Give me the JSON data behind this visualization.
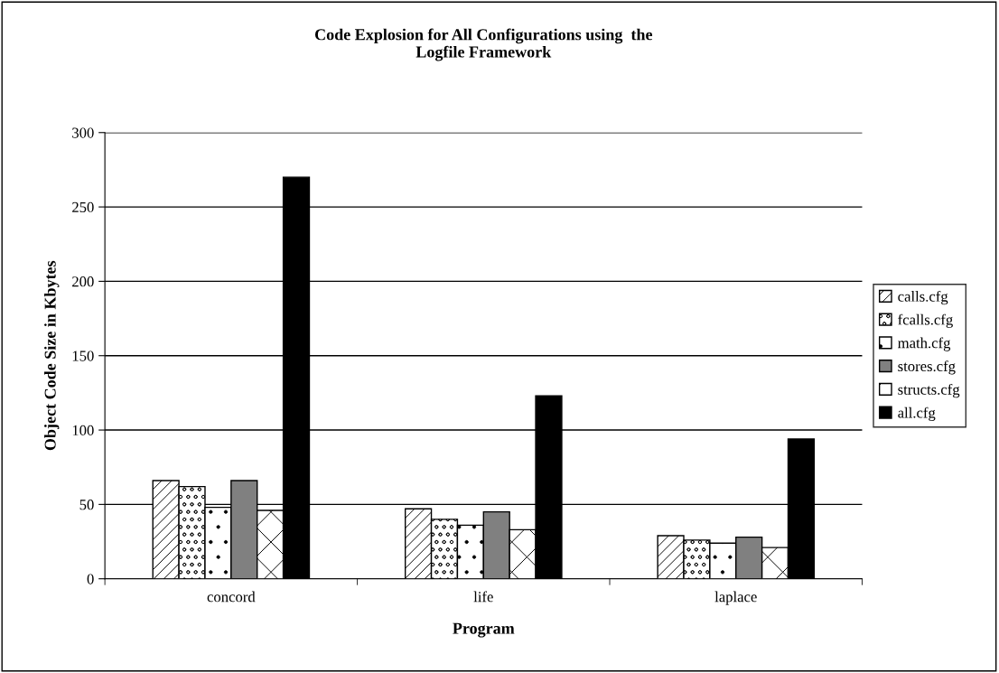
{
  "chart_data": {
    "type": "bar",
    "title": "Code Explosion for All Configurations using  the\nLogfile Framework",
    "xlabel": "Program",
    "ylabel": "Object Code Size in Kbytes",
    "categories": [
      "concord",
      "life",
      "laplace"
    ],
    "series": [
      {
        "name": "calls.cfg",
        "color": "#000000",
        "values": [
          66,
          47,
          29
        ]
      },
      {
        "name": "fcalls.cfg",
        "color": "#000000",
        "values": [
          62,
          40,
          26
        ]
      },
      {
        "name": "math.cfg",
        "color": "#000000",
        "values": [
          48,
          36,
          24
        ]
      },
      {
        "name": "stores.cfg",
        "color": "#808080",
        "values": [
          66,
          45,
          28
        ]
      },
      {
        "name": "structs.cfg",
        "color": "#000000",
        "values": [
          46,
          33,
          21
        ]
      },
      {
        "name": "all.cfg",
        "color": "#000000",
        "values": [
          270,
          123,
          94
        ]
      }
    ],
    "ylim": [
      0,
      300
    ],
    "yticks": [
      0,
      50,
      100,
      150,
      200,
      250,
      300
    ],
    "grid": "y",
    "legend": "right"
  }
}
